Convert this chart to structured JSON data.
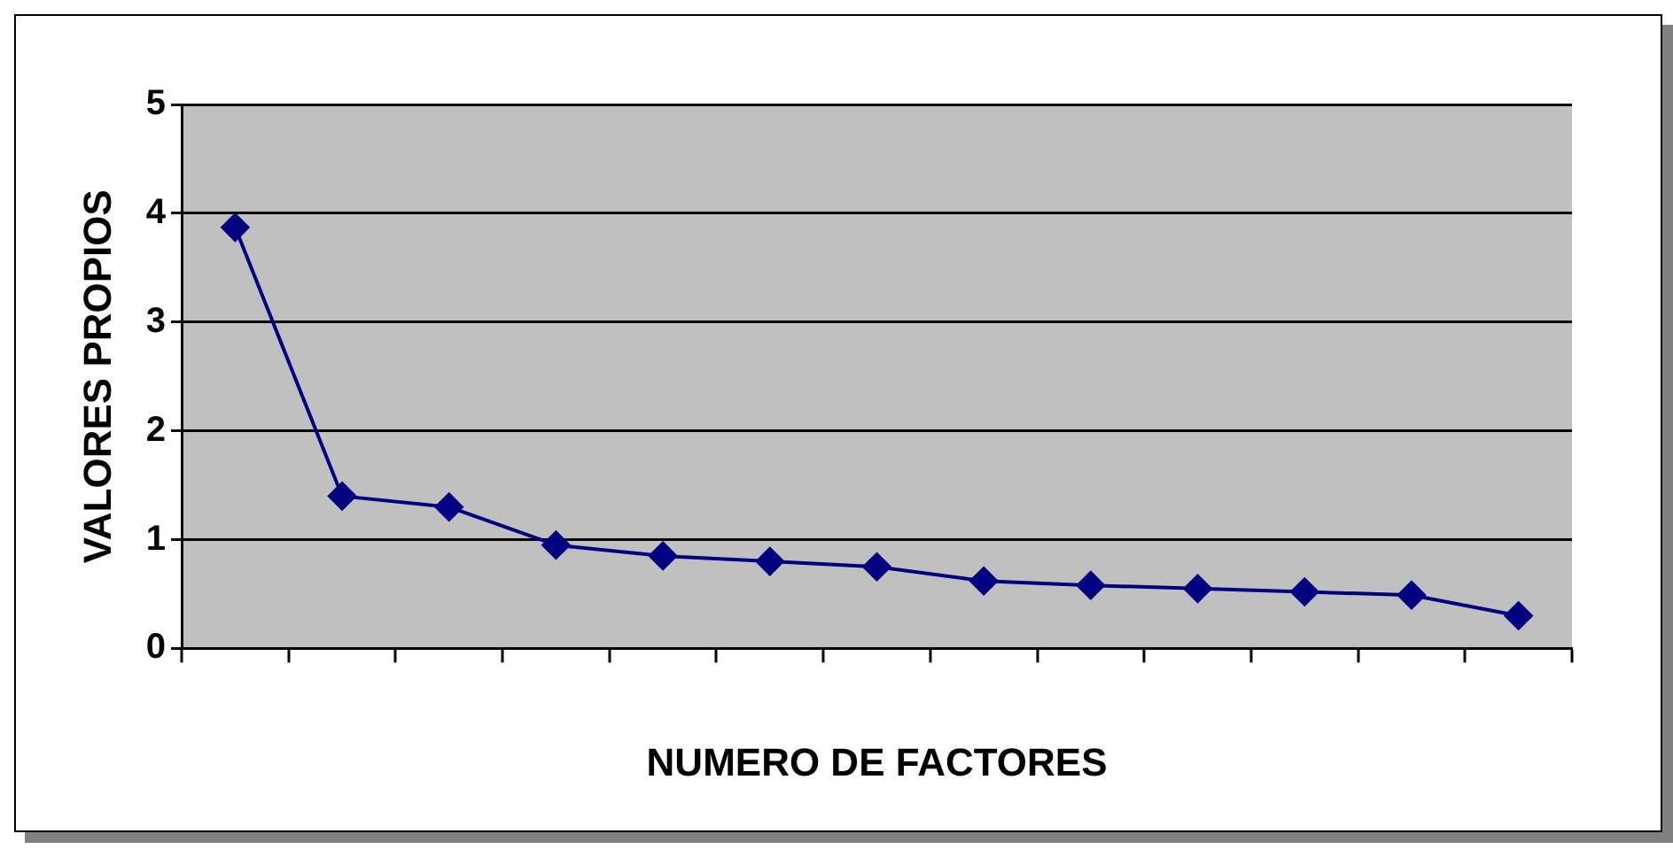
{
  "chart_data": {
    "type": "line",
    "xlabel": "NUMERO DE FACTORES",
    "ylabel": "VALORES PROPIOS",
    "categories": [
      null,
      null,
      null,
      null,
      null,
      null,
      null,
      null,
      null,
      null,
      null,
      null,
      null
    ],
    "series": [
      {
        "color": "#000080",
        "values": [
          3.87,
          1.4,
          1.3,
          0.95,
          0.85,
          0.8,
          0.75,
          0.62,
          0.58,
          0.55,
          0.52,
          0.49,
          0.3
        ]
      }
    ],
    "ylim": [
      0,
      5
    ],
    "yticks": [
      0,
      1,
      2,
      3,
      4,
      5
    ],
    "grid": "y",
    "legend": false,
    "marker": "diamond",
    "line_style": "solid"
  }
}
